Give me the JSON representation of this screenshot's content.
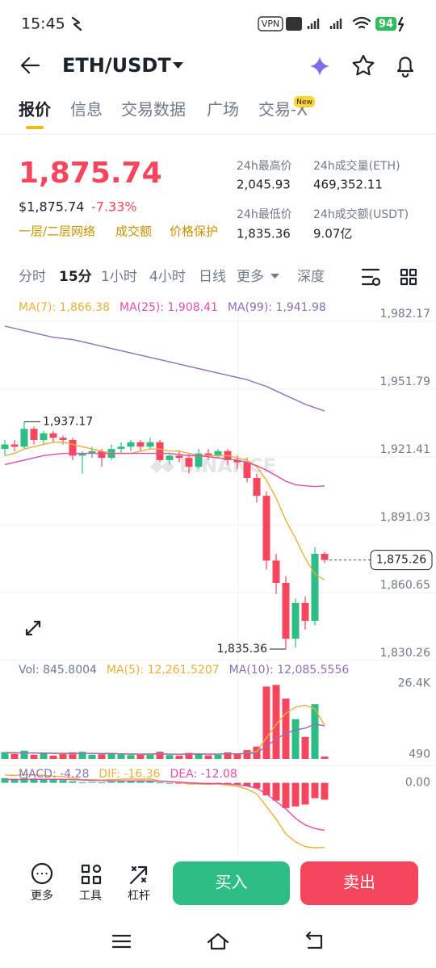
{
  "status_bar": {
    "time": "15:45",
    "vpn": "VPN",
    "battery": "94"
  },
  "header": {
    "pair": "ETH/USDT"
  },
  "tabs": {
    "items": [
      "报价",
      "信息",
      "交易数据",
      "广场",
      "交易-X"
    ],
    "badge": "New"
  },
  "price": {
    "last": "1,875.74",
    "usd": "$1,875.74",
    "change": "-7.33%",
    "tags": [
      "一层/二层网络",
      "成交额",
      "价格保护"
    ],
    "stats": [
      {
        "label": "24h最高价",
        "value": "2,045.93"
      },
      {
        "label": "24h成交量(ETH)",
        "value": "469,352.11"
      },
      {
        "label": "24h最低价",
        "value": "1,835.36"
      },
      {
        "label": "24h成交额(USDT)",
        "value": "9.07亿"
      }
    ]
  },
  "intervals": [
    "分时",
    "15分",
    "1小时",
    "4小时",
    "日线",
    "更多",
    "深度"
  ],
  "chart_data": [
    {
      "type": "candlestick",
      "watermark": "BINANCE",
      "up_color": "#2ebd85",
      "down_color": "#f6465d",
      "grid": true,
      "categories": [
        null,
        null,
        null,
        null,
        null,
        null,
        null,
        null,
        null,
        null,
        null,
        null,
        null,
        null,
        null,
        null,
        null,
        null,
        null,
        null,
        null,
        null,
        null,
        null,
        null,
        null,
        null,
        null,
        null,
        null,
        null,
        null,
        null,
        null
      ],
      "open": [
        1925,
        1927,
        1926,
        1934,
        1929,
        1932,
        1930,
        1929,
        1922,
        1923,
        1924,
        1921,
        1925,
        1926,
        1928,
        1926,
        1928,
        1920,
        1922,
        1921,
        1917,
        1923,
        1922,
        1924,
        1920,
        1919,
        1912,
        1904,
        1875,
        1865,
        1840,
        1856,
        1848,
        1878
      ],
      "high": [
        1929,
        1929,
        1937.17,
        1935,
        1933,
        1933,
        1931,
        1930,
        1924,
        1926,
        1925,
        1927,
        1928,
        1929,
        1929,
        1930,
        1929,
        1923,
        1924,
        1923,
        1925,
        1925,
        1925,
        1925,
        1922,
        1921,
        1914,
        1906,
        1878,
        1868,
        1858,
        1859,
        1881,
        1879
      ],
      "low": [
        1922,
        1924,
        1925,
        1927,
        1927,
        1928,
        1927,
        1920,
        1914,
        1921,
        1917,
        1920,
        1923,
        1924,
        1924,
        1925,
        1919,
        1918,
        1919,
        1914,
        1916,
        1920,
        1921,
        1918,
        1916,
        1910,
        1901,
        1871,
        1860,
        1835.36,
        1836,
        1844,
        1846,
        1874
      ],
      "close": [
        1927,
        1926,
        1934,
        1929,
        1932,
        1930,
        1929,
        1922,
        1923,
        1924,
        1921,
        1925,
        1926,
        1928,
        1926,
        1928,
        1920,
        1922,
        1921,
        1917,
        1923,
        1922,
        1924,
        1920,
        1919,
        1912,
        1904,
        1875,
        1865,
        1840,
        1856,
        1848,
        1878,
        1875.26
      ],
      "series": [
        {
          "name": "MA(7): 1,866.38",
          "color": "#e8b13a",
          "values": [
            1922,
            1923,
            1925,
            1926,
            1927,
            1928,
            1928,
            1927,
            1926,
            1925,
            1924,
            1923,
            1923,
            1923,
            1924,
            1925,
            1925,
            1924,
            1924,
            1923,
            1922,
            1922,
            1922,
            1922,
            1921,
            1920,
            1917,
            1911,
            1903,
            1893,
            1885,
            1876,
            1869,
            1866.38
          ]
        },
        {
          "name": "MA(25): 1,908.41",
          "color": "#df4fa8",
          "values": [
            1918,
            1919,
            1920,
            1921,
            1922,
            1922.5,
            1923,
            1923,
            1923,
            1923,
            1923,
            1923,
            1923,
            1923,
            1923,
            1923,
            1923,
            1923,
            1922.5,
            1922,
            1922,
            1921.5,
            1921,
            1920.5,
            1920,
            1919,
            1917.5,
            1915.5,
            1913,
            1910.5,
            1909,
            1908.5,
            1908.2,
            1908.41
          ]
        },
        {
          "name": "MA(99): 1,941.98",
          "color": "#8b6fb8",
          "values": [
            1980,
            1979,
            1978,
            1977,
            1976,
            1975,
            1974.5,
            1974,
            1973,
            1972,
            1971,
            1970,
            1969,
            1968,
            1967,
            1966,
            1965,
            1964,
            1963,
            1962,
            1961,
            1960,
            1959,
            1958,
            1957,
            1956,
            1954.5,
            1953,
            1951,
            1949,
            1947,
            1945,
            1943.5,
            1941.98
          ]
        }
      ],
      "ylim": [
        1831.36,
        1994.1
      ],
      "yticks": [
        {
          "value": 1982.17,
          "label": "1,982.17"
        },
        {
          "value": 1951.79,
          "label": "1,951.79"
        },
        {
          "value": 1921.41,
          "label": "1,921.41"
        },
        {
          "value": 1891.03,
          "label": "1,891.03"
        },
        {
          "value": 1860.65,
          "label": "1,860.65"
        },
        {
          "value": 1830.26,
          "label": "1,830.26"
        }
      ],
      "annotations": [
        {
          "value": 1937.17,
          "label": "1,937.17"
        },
        {
          "value": 1835.36,
          "label": "1,835.36"
        }
      ],
      "price_tag": {
        "value": 1875.26,
        "label": "1,875.26"
      }
    },
    {
      "type": "bar",
      "label": "Vol: 845.8004",
      "label_color": "#707a8a",
      "bar_colors": "candles",
      "grid": false,
      "categories": [
        null,
        null,
        null,
        null,
        null,
        null,
        null,
        null,
        null,
        null,
        null,
        null,
        null,
        null,
        null,
        null,
        null,
        null,
        null,
        null,
        null,
        null,
        null,
        null,
        null,
        null,
        null,
        null,
        null,
        null,
        null,
        null,
        null,
        null
      ],
      "values": [
        2500,
        1800,
        3000,
        1500,
        2000,
        1200,
        1800,
        2400,
        2600,
        1500,
        1700,
        2000,
        1600,
        1400,
        1800,
        1500,
        2600,
        1400,
        1200,
        2200,
        2000,
        1300,
        1500,
        2400,
        1900,
        3200,
        4500,
        26400,
        27000,
        22000,
        14500,
        8000,
        20000,
        845.8004
      ],
      "series": [
        {
          "name": "MA(5): 12,261.5207",
          "color": "#e8b13a",
          "values": [
            2200,
            2100,
            2200,
            2100,
            2160,
            1900,
            1900,
            1780,
            2000,
            1900,
            2000,
            2040,
            1880,
            1640,
            1700,
            1660,
            1780,
            1740,
            1700,
            1780,
            1880,
            1740,
            1780,
            1880,
            1820,
            2060,
            2660,
            7680,
            12600,
            16620,
            18880,
            19580,
            18300,
            12261.5207
          ]
        },
        {
          "name": "MA(10): 12,085.5556",
          "color": "#8b6fb8",
          "values": [
            2300,
            2250,
            2200,
            2150,
            2100,
            2080,
            2050,
            2000,
            2000,
            2000,
            1950,
            1970,
            1830,
            1820,
            1790,
            1820,
            1860,
            1760,
            1700,
            1770,
            1800,
            1760,
            1750,
            1850,
            1860,
            1950,
            2150,
            4650,
            7200,
            9300,
            10550,
            11200,
            12700,
            12085.5556
          ]
        }
      ],
      "ylim": [
        0,
        28000
      ],
      "yticks": [
        {
          "value": 26400,
          "label": "26.4K"
        },
        490
      ]
    },
    {
      "type": "bar",
      "label": "MACD: -4.28",
      "label_color": "#8b6fb8",
      "bar_colors": "sign",
      "up_color": "#2ebd85",
      "down_color": "#f6465d",
      "grid": false,
      "categories": [
        null,
        null,
        null,
        null,
        null,
        null,
        null,
        null,
        null,
        null,
        null,
        null,
        null,
        null,
        null,
        null,
        null,
        null,
        null,
        null,
        null,
        null,
        null,
        null,
        null,
        null,
        null,
        null,
        null,
        null,
        null,
        null,
        null,
        null
      ],
      "values": [
        1.2,
        1.0,
        1.3,
        1.1,
        1.0,
        0.8,
        0.7,
        0.4,
        0.1,
        0.2,
        0.1,
        0.3,
        0.4,
        0.5,
        0.4,
        0.5,
        0.1,
        0.0,
        -0.1,
        -0.3,
        -0.2,
        -0.2,
        -0.1,
        -0.3,
        -0.4,
        -0.8,
        -1.4,
        -3.2,
        -4.5,
        -6.4,
        -6.0,
        -5.5,
        -3.9,
        -4.28
      ],
      "series": [
        {
          "name": "DIF: -16.36",
          "color": "#e8b13a",
          "values": [
            2.0,
            1.9,
            2.1,
            2.0,
            1.9,
            1.7,
            1.6,
            1.2,
            0.8,
            0.8,
            0.7,
            0.8,
            0.9,
            1.0,
            0.9,
            1.0,
            0.5,
            0.3,
            0.1,
            -0.3,
            -0.3,
            -0.4,
            -0.3,
            -0.6,
            -0.9,
            -1.6,
            -2.8,
            -6.0,
            -9.2,
            -13.0,
            -15.0,
            -16.2,
            -16.5,
            -16.36
          ]
        },
        {
          "name": "DEA: -12.08",
          "color": "#df4fa8",
          "values": [
            0.8,
            0.9,
            0.8,
            0.9,
            0.9,
            0.9,
            0.9,
            0.8,
            0.7,
            0.6,
            0.6,
            0.5,
            0.5,
            0.5,
            0.5,
            0.5,
            0.4,
            0.3,
            0.2,
            0.0,
            -0.1,
            -0.2,
            -0.2,
            -0.3,
            -0.5,
            -0.8,
            -1.4,
            -2.8,
            -4.7,
            -6.6,
            -9.0,
            -10.7,
            -11.6,
            -12.08
          ]
        }
      ],
      "ylim": [
        -17.5,
        3
      ],
      "yticks": [
        {
          "value": 0,
          "label": "0.00"
        }
      ]
    }
  ],
  "actions": {
    "tools": [
      "更多",
      "工具",
      "杠杆"
    ],
    "buy": "买入",
    "sell": "卖出"
  }
}
